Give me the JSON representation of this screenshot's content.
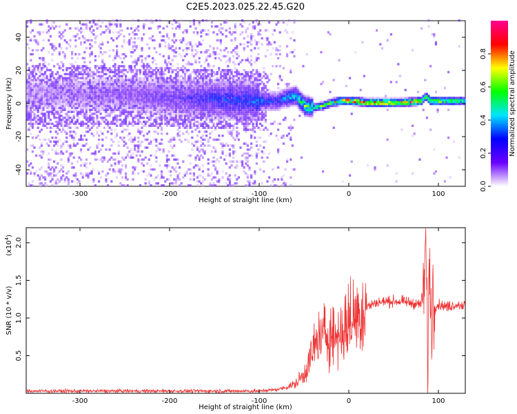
{
  "figure_title": "C2E5.2023.025.22.45.G20",
  "chart_data": [
    {
      "type": "heatmap",
      "title": "C2E5.2023.025.22.45.G20",
      "xlabel": "Height of straight line (km)",
      "ylabel": "Frequency (Hz)",
      "xlim": [
        -360,
        130
      ],
      "ylim": [
        -50,
        50
      ],
      "x_ticks": [
        -300,
        -200,
        -100,
        0,
        100
      ],
      "x_tick_labels": [
        "-300",
        "-200",
        "-100",
        "0",
        "100"
      ],
      "y_ticks": [
        -40,
        -20,
        0,
        20,
        40
      ],
      "y_tick_labels": [
        "-40",
        "-20",
        "0",
        "20",
        "40"
      ],
      "colorbar": {
        "label": "Normalized spectral amplitude",
        "range": [
          0,
          1
        ],
        "ticks": [
          0.0,
          0.2,
          0.4,
          0.6,
          0.8
        ],
        "tick_labels": [
          "0.0",
          "0.2",
          "0.4",
          "0.6",
          "0.8"
        ],
        "colormap": [
          "#ffffff",
          "#6a00ff",
          "#0000ff",
          "#00e5ff",
          "#00ff00",
          "#ffff00",
          "#ff0000",
          "#ff0090"
        ]
      },
      "signal_track": {
        "x": [
          -360,
          -300,
          -250,
          -200,
          -150,
          -100,
          -80,
          -70,
          -60,
          -50,
          -40,
          -30,
          -20,
          -10,
          0,
          20,
          40,
          60,
          80,
          85,
          90,
          100,
          130
        ],
        "freq": [
          5,
          5,
          5,
          3,
          2,
          1,
          1,
          3,
          4,
          -2,
          -3,
          -2,
          0,
          1,
          1,
          0,
          0,
          0,
          1,
          4,
          1,
          1,
          1
        ],
        "amplitude": [
          0.1,
          0.12,
          0.15,
          0.2,
          0.3,
          0.35,
          0.3,
          0.4,
          0.45,
          0.6,
          0.6,
          0.65,
          0.7,
          0.8,
          0.9,
          0.9,
          0.85,
          0.85,
          0.8,
          0.6,
          0.85,
          0.75,
          0.6
        ]
      },
      "grid": false
    },
    {
      "type": "line",
      "title": "",
      "xlabel": "Height of straight line (km)",
      "ylabel": "SNR (10 * v/v)",
      "y_exponent_label": "(x10",
      "y_exponent_power": "4",
      "y_exponent_close": ")",
      "xlim": [
        -360,
        130
      ],
      "ylim": [
        0,
        2.2
      ],
      "x_ticks": [
        -300,
        -200,
        -100,
        0,
        100
      ],
      "x_tick_labels": [
        "-300",
        "-200",
        "-100",
        "0",
        "100"
      ],
      "y_ticks": [
        0.5,
        1.0,
        1.5,
        2.0
      ],
      "y_tick_labels": [
        "0.5",
        "1.0",
        "1.5",
        "2.0"
      ],
      "series": [
        {
          "color": "#ee3333",
          "x": [
            -360,
            -300,
            -250,
            -200,
            -150,
            -100,
            -90,
            -80,
            -70,
            -60,
            -50,
            -45,
            -40,
            -35,
            -30,
            -25,
            -20,
            -15,
            -10,
            -5,
            0,
            10,
            20,
            30,
            40,
            50,
            60,
            70,
            80,
            84,
            86,
            88,
            90,
            92,
            94,
            96,
            100,
            110,
            120,
            130
          ],
          "values": [
            0.03,
            0.03,
            0.03,
            0.03,
            0.03,
            0.03,
            0.04,
            0.05,
            0.08,
            0.12,
            0.25,
            0.4,
            0.55,
            0.7,
            0.75,
            0.8,
            0.8,
            0.75,
            0.8,
            0.85,
            0.95,
            1.05,
            1.15,
            1.2,
            1.22,
            1.22,
            1.22,
            1.2,
            1.18,
            1.4,
            2.0,
            0.5,
            1.7,
            1.0,
            1.3,
            1.15,
            1.18,
            1.15,
            1.18,
            1.17
          ]
        }
      ],
      "grid": false
    }
  ]
}
